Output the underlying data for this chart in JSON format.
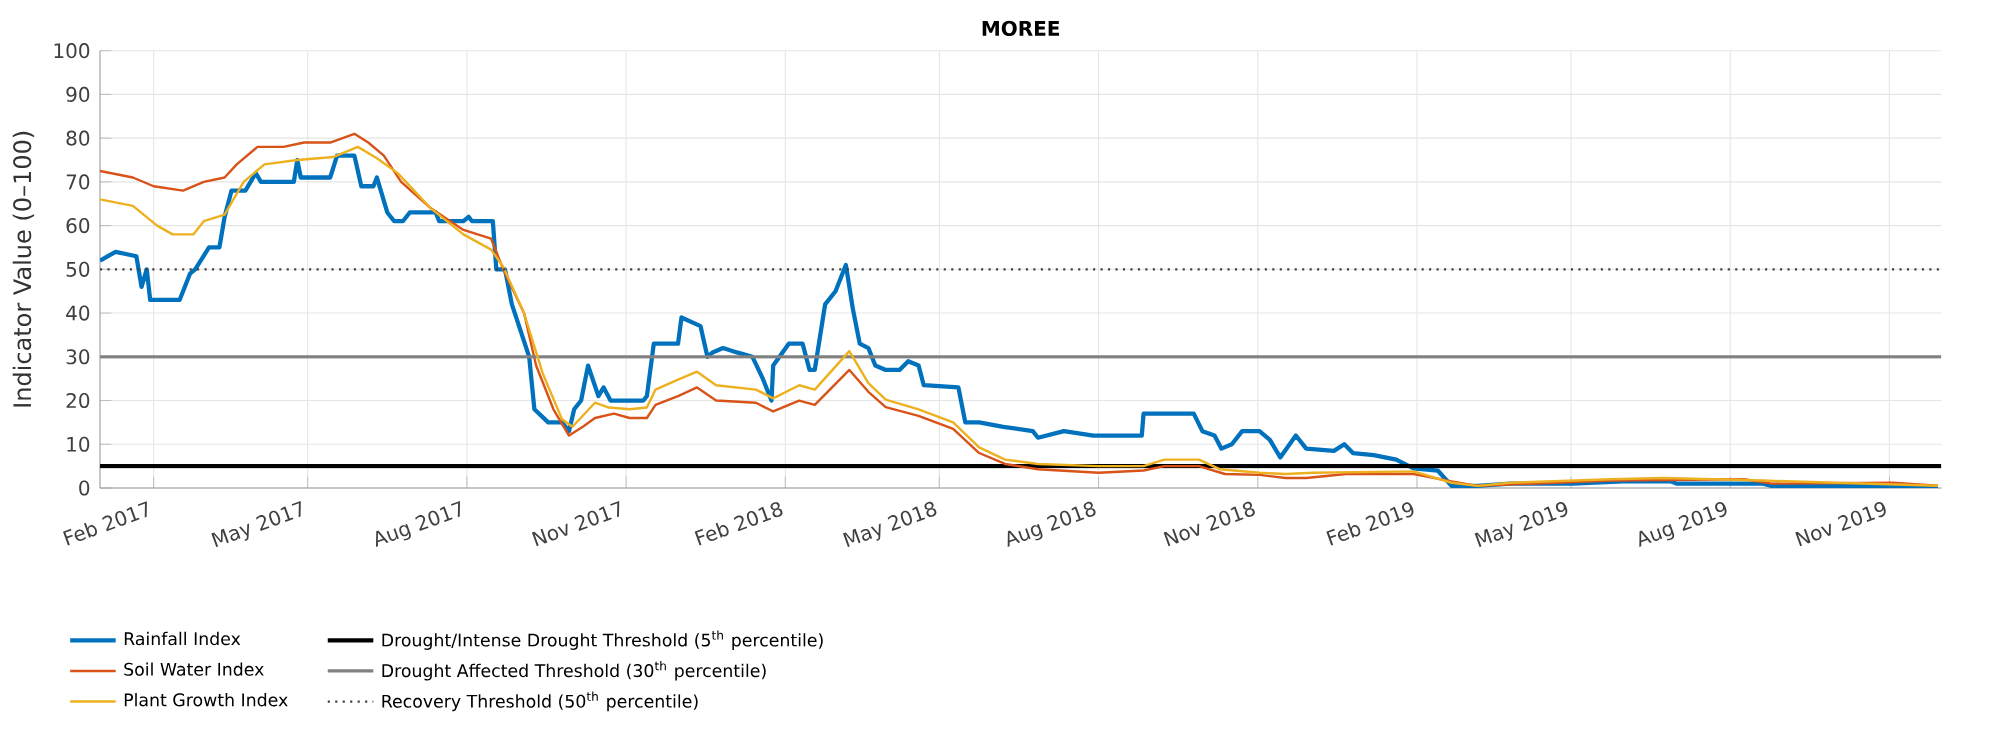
{
  "chart_data": {
    "type": "line",
    "title": "MOREE",
    "ylabel": "Indicator Value (0–100)",
    "xlim": [
      "2017-01-01",
      "2019-12-01"
    ],
    "ylim": [
      0,
      100
    ],
    "xticks": [
      {
        "value": "2017-02-01",
        "label": "Feb 2017"
      },
      {
        "value": "2017-05-01",
        "label": "May 2017"
      },
      {
        "value": "2017-08-01",
        "label": "Aug 2017"
      },
      {
        "value": "2017-11-01",
        "label": "Nov 2017"
      },
      {
        "value": "2018-02-01",
        "label": "Feb 2018"
      },
      {
        "value": "2018-05-01",
        "label": "May 2018"
      },
      {
        "value": "2018-08-01",
        "label": "Aug 2018"
      },
      {
        "value": "2018-11-01",
        "label": "Nov 2018"
      },
      {
        "value": "2019-02-01",
        "label": "Feb 2019"
      },
      {
        "value": "2019-05-01",
        "label": "May 2019"
      },
      {
        "value": "2019-08-01",
        "label": "Aug 2019"
      },
      {
        "value": "2019-11-01",
        "label": "Nov 2019"
      }
    ],
    "yticks": [
      0,
      10,
      20,
      30,
      40,
      50,
      60,
      70,
      80,
      90,
      100
    ],
    "grid": true,
    "legend": "bottom",
    "series": [
      {
        "name": "Rainfall Index",
        "color": "#0072bd",
        "x": [
          "2017-01-01",
          "2017-01-10",
          "2017-01-22",
          "2017-01-25",
          "2017-01-28",
          "2017-01-30",
          "2017-02-16",
          "2017-02-22",
          "2017-02-25",
          "2017-03-05",
          "2017-03-11",
          "2017-03-14",
          "2017-03-18",
          "2017-03-26",
          "2017-04-01",
          "2017-04-04",
          "2017-04-23",
          "2017-04-25",
          "2017-04-27",
          "2017-05-14",
          "2017-05-18",
          "2017-05-28",
          "2017-06-01",
          "2017-06-08",
          "2017-06-10",
          "2017-06-16",
          "2017-06-20",
          "2017-06-25",
          "2017-06-29",
          "2017-07-14",
          "2017-07-16",
          "2017-07-30",
          "2017-08-02",
          "2017-08-04",
          "2017-08-16",
          "2017-08-18",
          "2017-08-23",
          "2017-08-27",
          "2017-09-06",
          "2017-09-09",
          "2017-09-17",
          "2017-09-25",
          "2017-09-29",
          "2017-10-02",
          "2017-10-06",
          "2017-10-10",
          "2017-10-16",
          "2017-10-19",
          "2017-10-23",
          "2017-11-11",
          "2017-11-13",
          "2017-11-17",
          "2017-12-01",
          "2017-12-03",
          "2017-12-14",
          "2017-12-18",
          "2017-12-21",
          "2017-12-27",
          "2018-01-04",
          "2018-01-13",
          "2018-01-19",
          "2018-01-24",
          "2018-01-25",
          "2018-02-03",
          "2018-02-11",
          "2018-02-15",
          "2018-02-18",
          "2018-02-24",
          "2018-03-02",
          "2018-03-08",
          "2018-03-12",
          "2018-03-16",
          "2018-03-21",
          "2018-03-25",
          "2018-03-31",
          "2018-04-08",
          "2018-04-13",
          "2018-04-19",
          "2018-04-22",
          "2018-05-12",
          "2018-05-16",
          "2018-05-24",
          "2018-06-07",
          "2018-06-24",
          "2018-06-27",
          "2018-07-12",
          "2018-07-29",
          "2018-08-26",
          "2018-08-27",
          "2018-09-08",
          "2018-09-25",
          "2018-09-30",
          "2018-10-07",
          "2018-10-11",
          "2018-10-17",
          "2018-10-23",
          "2018-11-02",
          "2018-11-08",
          "2018-11-14",
          "2018-11-23",
          "2018-11-29",
          "2018-12-15",
          "2018-12-21",
          "2018-12-26",
          "2019-01-07",
          "2019-01-20",
          "2019-01-30",
          "2019-02-13",
          "2019-02-21",
          "2019-03-08",
          "2019-03-27",
          "2019-05-02",
          "2019-05-31",
          "2019-06-28",
          "2019-07-01",
          "2019-08-20",
          "2019-08-25",
          "2019-11-14",
          "2019-11-20",
          "2019-11-29"
        ],
        "values": [
          52,
          54,
          53,
          46,
          50,
          43,
          43,
          49,
          50,
          55,
          55,
          62,
          68,
          68,
          72,
          70,
          70,
          75,
          71,
          71,
          76,
          76,
          69,
          69,
          71,
          63,
          61,
          61,
          63,
          63,
          61,
          61,
          62,
          61,
          61,
          50,
          50,
          42,
          30,
          18,
          15,
          15,
          13,
          18,
          20,
          28,
          21,
          23,
          20,
          20,
          21,
          33,
          33,
          39,
          37,
          30,
          31,
          32,
          31,
          30,
          25,
          20,
          28,
          33,
          33,
          27,
          27,
          42,
          45,
          51,
          41,
          33,
          32,
          28,
          27,
          27,
          29,
          28,
          23.5,
          23,
          15,
          15,
          14,
          13,
          11.5,
          13,
          12,
          12,
          17,
          17,
          17,
          13,
          12,
          9,
          10,
          13,
          13,
          11,
          7,
          12,
          9,
          8.5,
          10,
          8,
          7.5,
          6.5,
          4.5,
          4,
          0.5,
          0.5,
          1,
          1,
          1.5,
          1.5,
          1,
          1,
          0.5,
          0.5,
          0,
          0
        ]
      },
      {
        "name": "Soil Water Index",
        "color": "#d95319",
        "x": [
          "2017-01-01",
          "2017-01-20",
          "2017-02-01",
          "2017-02-18",
          "2017-03-02",
          "2017-03-14",
          "2017-03-21",
          "2017-04-02",
          "2017-04-17",
          "2017-04-29",
          "2017-05-14",
          "2017-05-28",
          "2017-06-05",
          "2017-06-14",
          "2017-06-24",
          "2017-07-11",
          "2017-07-30",
          "2017-08-15",
          "2017-08-22",
          "2017-09-03",
          "2017-09-10",
          "2017-09-20",
          "2017-09-29",
          "2017-10-07",
          "2017-10-14",
          "2017-10-25",
          "2017-11-03",
          "2017-11-13",
          "2017-11-18",
          "2017-12-01",
          "2017-12-12",
          "2017-12-23",
          "2018-01-15",
          "2018-01-25",
          "2018-02-09",
          "2018-02-18",
          "2018-03-10",
          "2018-03-21",
          "2018-03-31",
          "2018-04-19",
          "2018-05-09",
          "2018-05-24",
          "2018-06-08",
          "2018-06-27",
          "2018-08-01",
          "2018-08-27",
          "2018-09-08",
          "2018-09-28",
          "2018-10-13",
          "2018-11-02",
          "2018-11-17",
          "2018-11-29",
          "2018-12-22",
          "2019-01-30",
          "2019-02-21",
          "2019-03-08",
          "2019-05-24",
          "2019-08-09",
          "2019-08-25",
          "2019-11-03",
          "2019-11-29"
        ],
        "values": [
          72.5,
          71,
          69,
          68,
          70,
          71,
          74,
          78,
          78,
          79,
          79,
          81,
          79,
          76,
          70,
          64,
          59,
          57,
          50,
          40,
          28,
          18,
          12,
          14,
          16,
          17,
          16,
          16,
          19,
          21,
          23,
          20,
          19.5,
          17.5,
          20,
          19,
          27,
          22,
          18.5,
          16.5,
          13.5,
          8,
          5.5,
          4.3,
          3.5,
          4,
          5,
          5,
          3.2,
          3,
          2.3,
          2.3,
          3.2,
          3.2,
          1.5,
          0.5,
          1.7,
          2,
          1,
          1.2,
          0.5
        ]
      },
      {
        "name": "Plant Growth Index",
        "color": "#edb120",
        "x": [
          "2017-01-01",
          "2017-01-20",
          "2017-02-03",
          "2017-02-12",
          "2017-02-24",
          "2017-03-02",
          "2017-03-14",
          "2017-03-25",
          "2017-04-06",
          "2017-04-25",
          "2017-05-16",
          "2017-05-30",
          "2017-06-10",
          "2017-06-22",
          "2017-07-11",
          "2017-07-30",
          "2017-08-15",
          "2017-08-22",
          "2017-09-03",
          "2017-09-14",
          "2017-09-25",
          "2017-10-01",
          "2017-10-14",
          "2017-10-22",
          "2017-11-03",
          "2017-11-13",
          "2017-11-18",
          "2017-12-01",
          "2017-12-12",
          "2017-12-23",
          "2018-01-15",
          "2018-01-25",
          "2018-02-09",
          "2018-02-18",
          "2018-03-10",
          "2018-03-21",
          "2018-03-31",
          "2018-04-19",
          "2018-05-09",
          "2018-05-24",
          "2018-06-08",
          "2018-06-27",
          "2018-08-01",
          "2018-08-27",
          "2018-09-08",
          "2018-09-28",
          "2018-10-10",
          "2018-11-02",
          "2018-11-17",
          "2018-12-03",
          "2019-01-30",
          "2019-02-21",
          "2019-03-08",
          "2019-03-27",
          "2019-05-24",
          "2019-06-23",
          "2019-08-20",
          "2019-11-29"
        ],
        "values": [
          66,
          64.5,
          60,
          58,
          58,
          61,
          62.5,
          70,
          74,
          75,
          75.7,
          78,
          75.4,
          72,
          64,
          58,
          54.5,
          50.6,
          40,
          26,
          15.7,
          14,
          19.5,
          18.4,
          18,
          18.4,
          22.5,
          24.8,
          26.6,
          23.5,
          22.5,
          20.5,
          23.5,
          22.5,
          31.3,
          24,
          20.2,
          18,
          15,
          9.3,
          6.5,
          5.5,
          5,
          5,
          6.5,
          6.5,
          4.3,
          3.5,
          3.2,
          3.5,
          3.8,
          1.2,
          0.5,
          1.2,
          2,
          2.3,
          1.7,
          0.5
        ]
      }
    ],
    "ref_lines": [
      {
        "axis": "y",
        "value": 5,
        "label": "Drought/Intense Drought Threshold (5$^{th}$ percentile)",
        "color": "#000000",
        "line_style": "solid"
      },
      {
        "axis": "y",
        "value": 30,
        "label": "Drought Affected Threshold (30$^{th}$ percentile)",
        "color": "#808080",
        "line_style": "solid"
      },
      {
        "axis": "y",
        "value": 50,
        "label": "Recovery Threshold (50$^{th}$ percentile)",
        "color": "#404040",
        "line_style": "dotted"
      }
    ]
  }
}
